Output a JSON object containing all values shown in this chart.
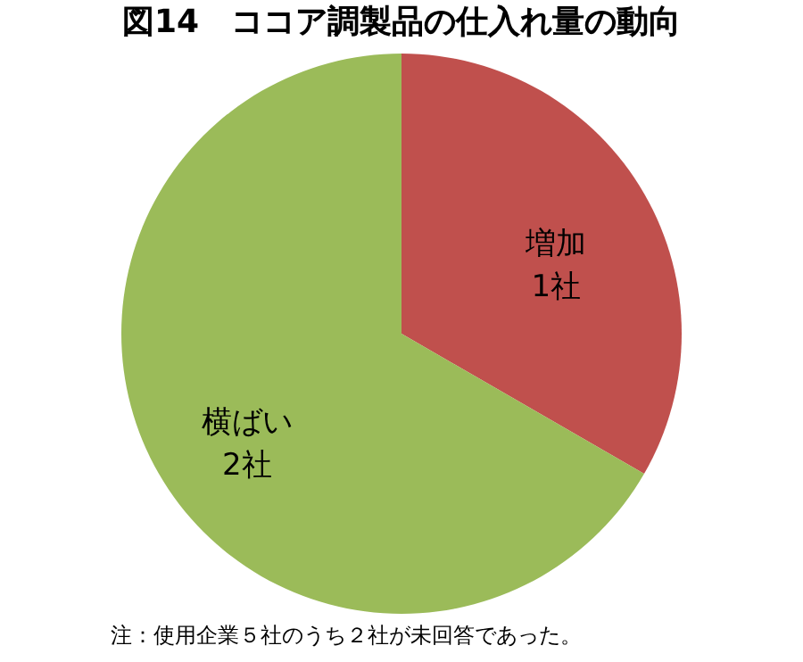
{
  "chart_data": {
    "type": "pie",
    "title": "図14　ココア調製品の仕入れ量の動向",
    "categories": [
      "増加",
      "横ばい"
    ],
    "values": [
      1,
      2
    ],
    "value_labels": [
      "1社",
      "2社"
    ],
    "colors": [
      "#c0504d",
      "#9bbb59"
    ],
    "legend": false,
    "annotations": [
      "注：使用企業５社のうち２社が未回答であった。"
    ]
  }
}
